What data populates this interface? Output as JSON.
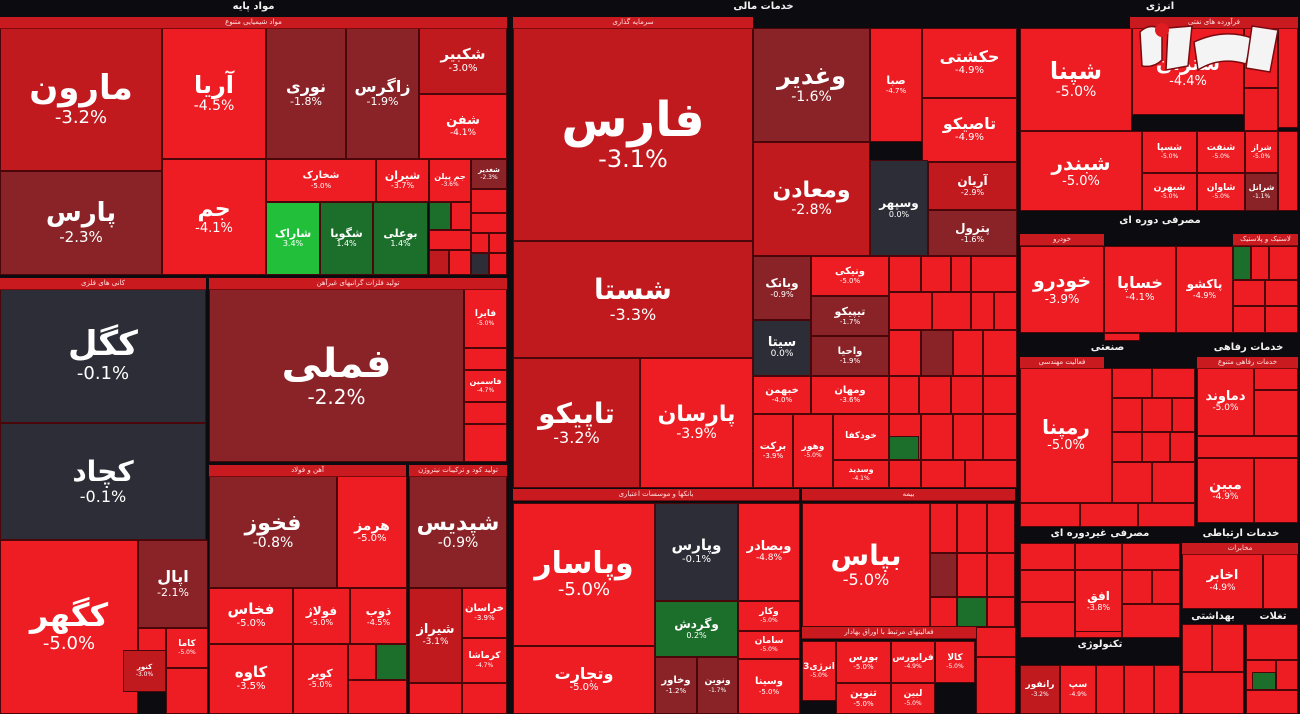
{
  "chart_data": {
    "type": "treemap",
    "colors": {
      "strong_neg": "#ee1c23",
      "mid_neg": "#c01a1f",
      "weak_neg": "#8a2327",
      "flat": "#2c2d36",
      "pos": "#1b6f2b",
      "strong_pos": "#22c03a"
    },
    "headers": [
      {
        "id": "h-mavad",
        "label": "مواد پایه"
      },
      {
        "id": "h-mali",
        "label": "خدمات مالی"
      },
      {
        "id": "h-energy",
        "label": "انرژی"
      },
      {
        "id": "h-mosrefi",
        "label": "مصرفی دوره ای"
      },
      {
        "id": "h-sanati",
        "label": "صنعتی"
      },
      {
        "id": "h-refahi",
        "label": "خدمات رفاهی"
      },
      {
        "id": "h-ghair",
        "label": "مصرفی غیردوره ای"
      },
      {
        "id": "h-ertebat",
        "label": "خدمات ارتباطی"
      },
      {
        "id": "h-tech",
        "label": "تکنولوژی"
      },
      {
        "id": "h-behdasht",
        "label": "بهداشتی"
      },
      {
        "id": "h-ghatat",
        "label": "تغلات"
      }
    ],
    "subheaders": [
      {
        "id": "s-shimi",
        "label": "مواد شیمیایی متنوع"
      },
      {
        "id": "s-kani",
        "label": "کانی های فلزی"
      },
      {
        "id": "s-felezat",
        "label": "تولید فلزات گرانبهای غیرآهن"
      },
      {
        "id": "s-ahan",
        "label": "آهن و فولاد"
      },
      {
        "id": "s-kood",
        "label": "تولید کود و ترکیبات نیتروژن"
      },
      {
        "id": "s-sarmaye",
        "label": "سرمایه گذاری"
      },
      {
        "id": "s-bank",
        "label": "بانکها و موسسات اعتباری"
      },
      {
        "id": "s-bime",
        "label": "بیمه"
      },
      {
        "id": "s-oragh",
        "label": "فعالیتهای مرتبط با اوراق بهادار"
      },
      {
        "id": "s-palayesh",
        "label": "فرآورده های نفتی"
      },
      {
        "id": "s-khodro",
        "label": "خودرو"
      },
      {
        "id": "s-lastik",
        "label": "لاستیک و پلاستیک"
      },
      {
        "id": "s-sanati-mohandesi",
        "label": "فعالیت مهندسی"
      },
      {
        "id": "s-refahi-1",
        "label": "خدمات رفاهی متنوع"
      },
      {
        "id": "s-mokhaberat",
        "label": "مخابرات"
      }
    ],
    "tiles": [
      {
        "id": "maroon",
        "name": "مارون",
        "change": "-3.2%",
        "value": -3.2
      },
      {
        "id": "aria",
        "name": "آریا",
        "change": "-4.5%",
        "value": -4.5
      },
      {
        "id": "noori",
        "name": "نوری",
        "change": "-1.8%",
        "value": -1.8
      },
      {
        "id": "zagros",
        "name": "زاگرس",
        "change": "-1.9%",
        "value": -1.9
      },
      {
        "id": "shekbir",
        "name": "شکبیر",
        "change": "-3.0%",
        "value": -3.0
      },
      {
        "id": "shfan",
        "name": "شفن",
        "change": "-4.1%",
        "value": -4.1
      },
      {
        "id": "pars-m",
        "name": "پارس",
        "change": "-2.3%",
        "value": -2.3
      },
      {
        "id": "jam",
        "name": "جم",
        "change": "-4.1%",
        "value": -4.1
      },
      {
        "id": "shkharak",
        "name": "شخارک",
        "change": "-5.0%",
        "value": -5.0
      },
      {
        "id": "shiran",
        "name": "شیران",
        "change": "-3.7%",
        "value": -3.7
      },
      {
        "id": "jampilan",
        "name": "جم پیلن",
        "change": "-3.6%",
        "value": -3.6
      },
      {
        "id": "shadir",
        "name": "شغدیر",
        "change": "-2.3%",
        "value": -2.3
      },
      {
        "id": "sharak",
        "name": "شاراک",
        "change": "3.4%",
        "value": 3.4
      },
      {
        "id": "shgooya",
        "name": "شگویا",
        "change": "1.4%",
        "value": 1.4
      },
      {
        "id": "booali",
        "name": "بوعلی",
        "change": "1.4%",
        "value": 1.4
      },
      {
        "id": "kegol",
        "name": "کگل",
        "change": "-0.1%",
        "value": -0.1
      },
      {
        "id": "kchad",
        "name": "کچاد",
        "change": "-0.1%",
        "value": -0.1
      },
      {
        "id": "kegohar",
        "name": "کگهر",
        "change": "-5.0%",
        "value": -5.0
      },
      {
        "id": "fameli",
        "name": "فملی",
        "change": "-2.2%",
        "value": -2.2
      },
      {
        "id": "faira",
        "name": "فایرا",
        "change": "-5.0%",
        "value": -5.0
      },
      {
        "id": "fasmin",
        "name": "فاسمین",
        "change": "-4.7%",
        "value": -4.7
      },
      {
        "id": "fkhoz",
        "name": "فخوز",
        "change": "-0.8%",
        "value": -0.8
      },
      {
        "id": "hormoz",
        "name": "هرمز",
        "change": "-5.0%",
        "value": -5.0
      },
      {
        "id": "apal",
        "name": "اپال",
        "change": "-2.1%",
        "value": -2.1
      },
      {
        "id": "kama",
        "name": "کاما",
        "change": "-5.0%",
        "value": -5.0
      },
      {
        "id": "kantor",
        "name": "کنور",
        "change": "-3.0%",
        "value": -3.0
      },
      {
        "id": "fkhas",
        "name": "فخاس",
        "change": "-5.0%",
        "value": -5.0
      },
      {
        "id": "foolaj",
        "name": "فولاژ",
        "change": "-5.0%",
        "value": -5.0
      },
      {
        "id": "zob",
        "name": "ذوب",
        "change": "-4.5%",
        "value": -4.5
      },
      {
        "id": "kave",
        "name": "کاوه",
        "change": "-3.5%",
        "value": -3.5
      },
      {
        "id": "kavir",
        "name": "کویر",
        "change": "-5.0%",
        "value": -5.0
      },
      {
        "id": "shpadis",
        "name": "شپدیس",
        "change": "-0.9%",
        "value": -0.9
      },
      {
        "id": "khorasan",
        "name": "خراسان",
        "change": "-3.9%",
        "value": -3.9
      },
      {
        "id": "shiraz",
        "name": "شیراز",
        "change": "-3.1%",
        "value": -3.1
      },
      {
        "id": "kermasha",
        "name": "کرماشا",
        "change": "-4.7%",
        "value": -4.7
      },
      {
        "id": "fars",
        "name": "فارس",
        "change": "-3.1%",
        "value": -3.1
      },
      {
        "id": "vaghadir",
        "name": "وغدیر",
        "change": "-1.6%",
        "value": -1.6
      },
      {
        "id": "seba",
        "name": "صبا",
        "change": "-4.7%",
        "value": -4.7
      },
      {
        "id": "hekashti",
        "name": "حکشتی",
        "change": "-4.9%",
        "value": -4.9
      },
      {
        "id": "tasiko",
        "name": "تاصیکو",
        "change": "-4.9%",
        "value": -4.9
      },
      {
        "id": "vamaaden",
        "name": "ومعادن",
        "change": "-2.8%",
        "value": -2.8
      },
      {
        "id": "vasphar",
        "name": "وسپهر",
        "change": "0.0%",
        "value": 0.0
      },
      {
        "id": "arian",
        "name": "آریان",
        "change": "-2.9%",
        "value": -2.9
      },
      {
        "id": "petrol",
        "name": "پترول",
        "change": "-1.6%",
        "value": -1.6
      },
      {
        "id": "shasta",
        "name": "شستا",
        "change": "-3.3%",
        "value": -3.3
      },
      {
        "id": "vabank",
        "name": "وبانک",
        "change": "-0.9%",
        "value": -0.9
      },
      {
        "id": "vaniki",
        "name": "ونیکی",
        "change": "-5.0%",
        "value": -5.0
      },
      {
        "id": "sita",
        "name": "سیتا",
        "change": "0.0%",
        "value": 0.0
      },
      {
        "id": "tipiko",
        "name": "تیپیکو",
        "change": "-1.7%",
        "value": -1.7
      },
      {
        "id": "vahia",
        "name": "واحیا",
        "change": "-1.9%",
        "value": -1.9
      },
      {
        "id": "tapiko",
        "name": "تاپیکو",
        "change": "-3.2%",
        "value": -3.2
      },
      {
        "id": "parsan",
        "name": "پارسان",
        "change": "-3.9%",
        "value": -3.9
      },
      {
        "id": "khabhan",
        "name": "خبهمن",
        "change": "-4.0%",
        "value": -4.0
      },
      {
        "id": "vamahan",
        "name": "ومهان",
        "change": "-3.6%",
        "value": -3.6
      },
      {
        "id": "barkat",
        "name": "برکت",
        "change": "-3.9%",
        "value": -3.9
      },
      {
        "id": "vahoor",
        "name": "وهور",
        "change": "-5.0%",
        "value": -5.0
      },
      {
        "id": "khodkafa",
        "name": "خودکفا",
        "change": "",
        "value": -4.8
      },
      {
        "id": "vasandid",
        "name": "وسدید",
        "change": "-4.1%",
        "value": -4.1
      },
      {
        "id": "vapasar",
        "name": "وپاسار",
        "change": "-5.0%",
        "value": -5.0
      },
      {
        "id": "vapars",
        "name": "وپارس",
        "change": "-0.1%",
        "value": -0.1
      },
      {
        "id": "vabsadar",
        "name": "وبصادر",
        "change": "-4.8%",
        "value": -4.8
      },
      {
        "id": "vagardesh",
        "name": "وگردش",
        "change": "0.2%",
        "value": 0.2
      },
      {
        "id": "vakar",
        "name": "وکار",
        "change": "-5.0%",
        "value": -5.0
      },
      {
        "id": "saman",
        "name": "سامان",
        "change": "-5.0%",
        "value": -5.0
      },
      {
        "id": "vatejarat",
        "name": "وتجارت",
        "change": "-5.0%",
        "value": -5.0
      },
      {
        "id": "vakhavar",
        "name": "وخاور",
        "change": "-1.2%",
        "value": -1.2
      },
      {
        "id": "vanovin",
        "name": "ونوین",
        "change": "-1.7%",
        "value": -1.7
      },
      {
        "id": "vasina",
        "name": "وسینا",
        "change": "-5.0%",
        "value": -5.0
      },
      {
        "id": "bapas",
        "name": "بپاس",
        "change": "-5.0%",
        "value": -5.0
      },
      {
        "id": "energy3",
        "name": "انرژی3",
        "change": "-5.0%",
        "value": -5.0
      },
      {
        "id": "boors",
        "name": "بورس",
        "change": "-5.0%",
        "value": -5.0
      },
      {
        "id": "farabourse",
        "name": "فرابورس",
        "change": "-4.9%",
        "value": -4.9
      },
      {
        "id": "kala",
        "name": "کالا",
        "change": "-5.0%",
        "value": -5.0
      },
      {
        "id": "tanoon",
        "name": "تنوین",
        "change": "-5.0%",
        "value": -5.0
      },
      {
        "id": "lebin",
        "name": "لبین",
        "change": "-5.0%",
        "value": -5.0
      },
      {
        "id": "shpana",
        "name": "شپنا",
        "change": "-5.0%",
        "value": -5.0
      },
      {
        "id": "shtran",
        "name": "شتران",
        "change": "-4.4%",
        "value": -4.4
      },
      {
        "id": "shbandar",
        "name": "شبندر",
        "change": "-5.0%",
        "value": -5.0
      },
      {
        "id": "shsapa",
        "name": "شسپا",
        "change": "-5.0%",
        "value": -5.0
      },
      {
        "id": "shenaft",
        "name": "شنفت",
        "change": "-5.0%",
        "value": -5.0
      },
      {
        "id": "shraz",
        "name": "شراز",
        "change": "-5.0%",
        "value": -5.0
      },
      {
        "id": "shbahran",
        "name": "شبهرن",
        "change": "-5.0%",
        "value": -5.0
      },
      {
        "id": "shavan",
        "name": "شاوان",
        "change": "-5.0%",
        "value": -5.0
      },
      {
        "id": "sharanol",
        "name": "شرانل",
        "change": "-1.1%",
        "value": -1.1
      },
      {
        "id": "khodro",
        "name": "خودرو",
        "change": "-3.9%",
        "value": -3.9
      },
      {
        "id": "khsapa",
        "name": "خساپا",
        "change": "-4.1%",
        "value": -4.1
      },
      {
        "id": "pakshoo",
        "name": "پاکشو",
        "change": "-4.9%",
        "value": -4.9
      },
      {
        "id": "ramapna",
        "name": "رمپنا",
        "change": "-5.0%",
        "value": -5.0
      },
      {
        "id": "damavand",
        "name": "دماوند",
        "change": "-5.0%",
        "value": -5.0
      },
      {
        "id": "mabin",
        "name": "مبین",
        "change": "-4.9%",
        "value": -4.9
      },
      {
        "id": "akhaber",
        "name": "اخابر",
        "change": "-4.9%",
        "value": -4.9
      },
      {
        "id": "ofogh",
        "name": "افق",
        "change": "-3.8%",
        "value": -3.8
      },
      {
        "id": "ranfor",
        "name": "رانفور",
        "change": "-3.2%",
        "value": -3.2
      },
      {
        "id": "sap",
        "name": "سپ",
        "change": "-4.9%",
        "value": -4.9
      }
    ]
  }
}
